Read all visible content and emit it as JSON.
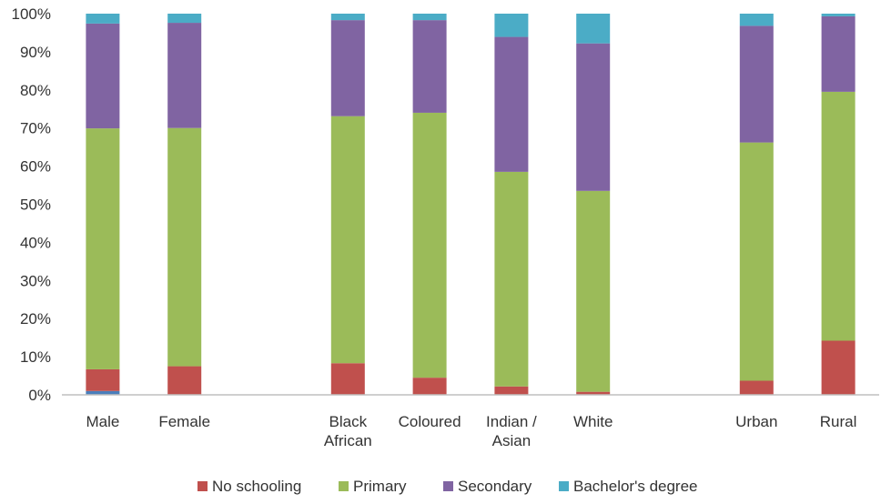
{
  "chart_data": {
    "type": "bar",
    "stacked": true,
    "normalized": true,
    "grid": false,
    "legend_position": "bottom",
    "ylim": [
      0,
      100
    ],
    "y_ticks": [
      "0%",
      "10%",
      "20%",
      "30%",
      "40%",
      "50%",
      "60%",
      "70%",
      "80%",
      "90%",
      "100%"
    ],
    "slots": [
      "Male",
      "Female",
      "",
      "Black African",
      "Coloured",
      "Indian / Asian",
      "White",
      "",
      "Urban",
      "Rural"
    ],
    "categories": [
      {
        "label_lines": [
          "Male"
        ],
        "slot": 0
      },
      {
        "label_lines": [
          "Female"
        ],
        "slot": 1
      },
      {
        "label_lines": [
          "Black",
          "African"
        ],
        "slot": 3
      },
      {
        "label_lines": [
          "Coloured"
        ],
        "slot": 4
      },
      {
        "label_lines": [
          "Indian /",
          "Asian"
        ],
        "slot": 5
      },
      {
        "label_lines": [
          "White"
        ],
        "slot": 6
      },
      {
        "label_lines": [
          "Urban"
        ],
        "slot": 8
      },
      {
        "label_lines": [
          "Rural"
        ],
        "slot": 9
      }
    ],
    "unlabeled_base": {
      "color": "#4a7ebb",
      "values": [
        1,
        0,
        0,
        0,
        0,
        0,
        0,
        0
      ]
    },
    "series": [
      {
        "name": "No schooling",
        "color": "#c0504d",
        "values": [
          5.7,
          7.5,
          8.3,
          4.5,
          2.2,
          0.8,
          3.7,
          14.2
        ]
      },
      {
        "name": "Primary",
        "color": "#9bbb59",
        "values": [
          63.2,
          62.5,
          64.8,
          69.5,
          56.3,
          52.7,
          62.5,
          65.3
        ]
      },
      {
        "name": "Secondary",
        "color": "#8064a2",
        "values": [
          27.5,
          27.6,
          25.2,
          24.3,
          35.4,
          38.7,
          30.6,
          19.8
        ]
      },
      {
        "name": "Bachelor's degree",
        "color": "#4bacc6",
        "values": [
          2.6,
          2.4,
          1.7,
          1.7,
          6.1,
          7.8,
          3.2,
          0.7
        ]
      }
    ]
  }
}
